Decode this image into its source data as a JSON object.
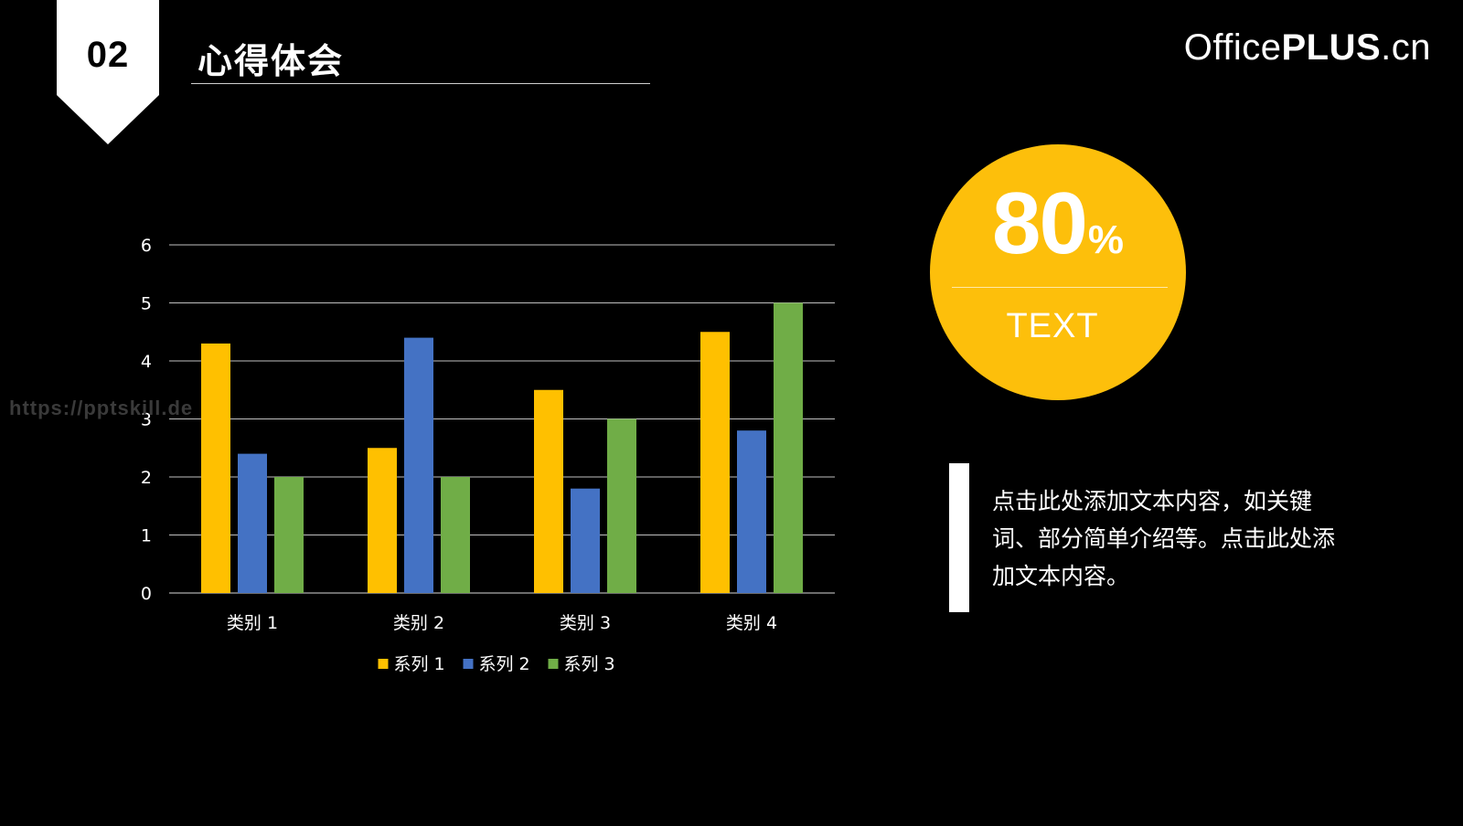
{
  "header": {
    "section_number": "02",
    "section_title": "心得体会",
    "brand_prefix": "Office",
    "brand_strong": "PLUS",
    "brand_suffix": ".cn"
  },
  "watermark": "https://pptskill.de",
  "stat": {
    "value": "80",
    "unit": "%",
    "label": "TEXT",
    "color": "#fdbf0b"
  },
  "description": "点击此处添加文本内容，如关键词、部分简单介绍等。点击此处添加文本内容。",
  "chart_data": {
    "type": "bar",
    "categories": [
      "类别 1",
      "类别 2",
      "类别 3",
      "类别 4"
    ],
    "series": [
      {
        "name": "系列 1",
        "values": [
          4.3,
          2.5,
          3.5,
          4.5
        ],
        "color": "#ffc000"
      },
      {
        "name": "系列 2",
        "values": [
          2.4,
          4.4,
          1.8,
          2.8
        ],
        "color": "#4472c4"
      },
      {
        "name": "系列 3",
        "values": [
          2,
          2,
          3,
          5
        ],
        "color": "#70ad47"
      }
    ],
    "ylim": [
      0,
      6
    ],
    "yticks": [
      0,
      1,
      2,
      3,
      4,
      5,
      6
    ],
    "grid": true,
    "legend": "bottom"
  }
}
